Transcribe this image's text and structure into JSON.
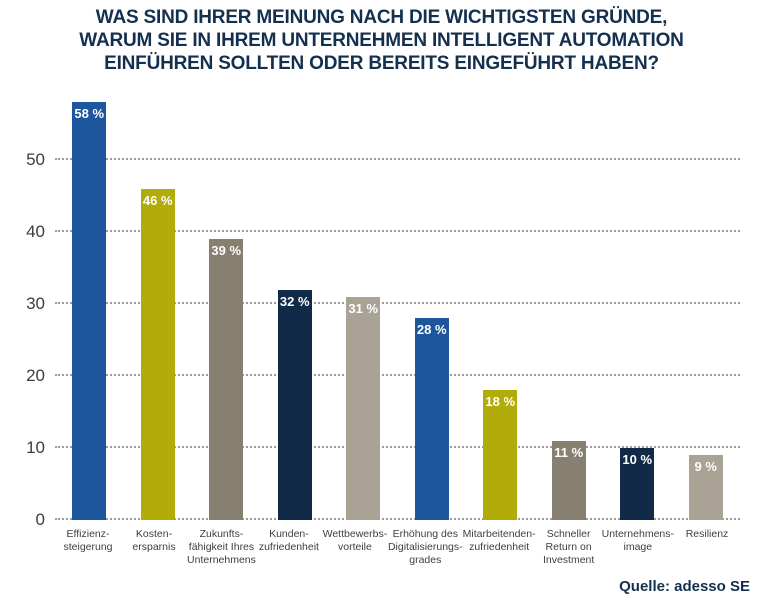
{
  "title": "WAS SIND IHRER MEINUNG NACH DIE WICHTIGSTEN GRÜNDE,\nWARUM SIE IN IHREM UNTERNEHMEN INTELLIGENT AUTOMATION\nEINFÜHREN SOLLTEN ODER BEREITS EINGEFÜHRT HABEN?",
  "source": "Quelle: adesso SE",
  "colors": {
    "title": "#14304f",
    "grid": "#9b9b9b",
    "axis_text": "#3d3d3c",
    "bar_blue": "#1d569d",
    "bar_olive": "#b2ac0a",
    "bar_taupe": "#878071",
    "bar_navy": "#102a48",
    "bar_light_taupe": "#a9a295",
    "value_label": "#ffffff"
  },
  "chart_data": {
    "type": "bar",
    "title": "WAS SIND IHRER MEINUNG NACH DIE WICHTIGSTEN GRÜNDE, WARUM SIE IN IHREM UNTERNEHMEN INTELLIGENT AUTOMATION EINFÜHREN SOLLTEN ODER BEREITS EINGEFÜHRT HABEN?",
    "categories": [
      "Effizienz-\nsteigerung",
      "Kosten-\nersparnis",
      "Zukunfts-\nfähigkeit Ihres\nUnternehmens",
      "Kunden-\nzufriedenheit",
      "Wettbewerbs-\nvorteile",
      "Erhöhung des\nDigitalisierungs-\ngrades",
      "Mitarbeitenden-\nzufriedenheit",
      "Schneller\nReturn on\nInvestment",
      "Unternehmens-\nimage",
      "Resilienz"
    ],
    "values": [
      58,
      46,
      39,
      32,
      31,
      28,
      18,
      11,
      10,
      9
    ],
    "value_labels": [
      "58 %",
      "46 %",
      "39 %",
      "32 %",
      "31 %",
      "28 %",
      "18 %",
      "11 %",
      "10 %",
      "9 %"
    ],
    "bar_colors": [
      "#1d569d",
      "#b2ac0a",
      "#878071",
      "#102a48",
      "#a9a295",
      "#1d569d",
      "#b2ac0a",
      "#878071",
      "#102a48",
      "#a9a295"
    ],
    "xlabel": "",
    "ylabel": "",
    "ylim": [
      0,
      59
    ],
    "yticks": [
      0,
      10,
      20,
      30,
      40,
      50
    ],
    "grid": "horizontal dotted",
    "legend": "none",
    "value_label_position": "inside-top",
    "source": "Quelle: adesso SE"
  }
}
